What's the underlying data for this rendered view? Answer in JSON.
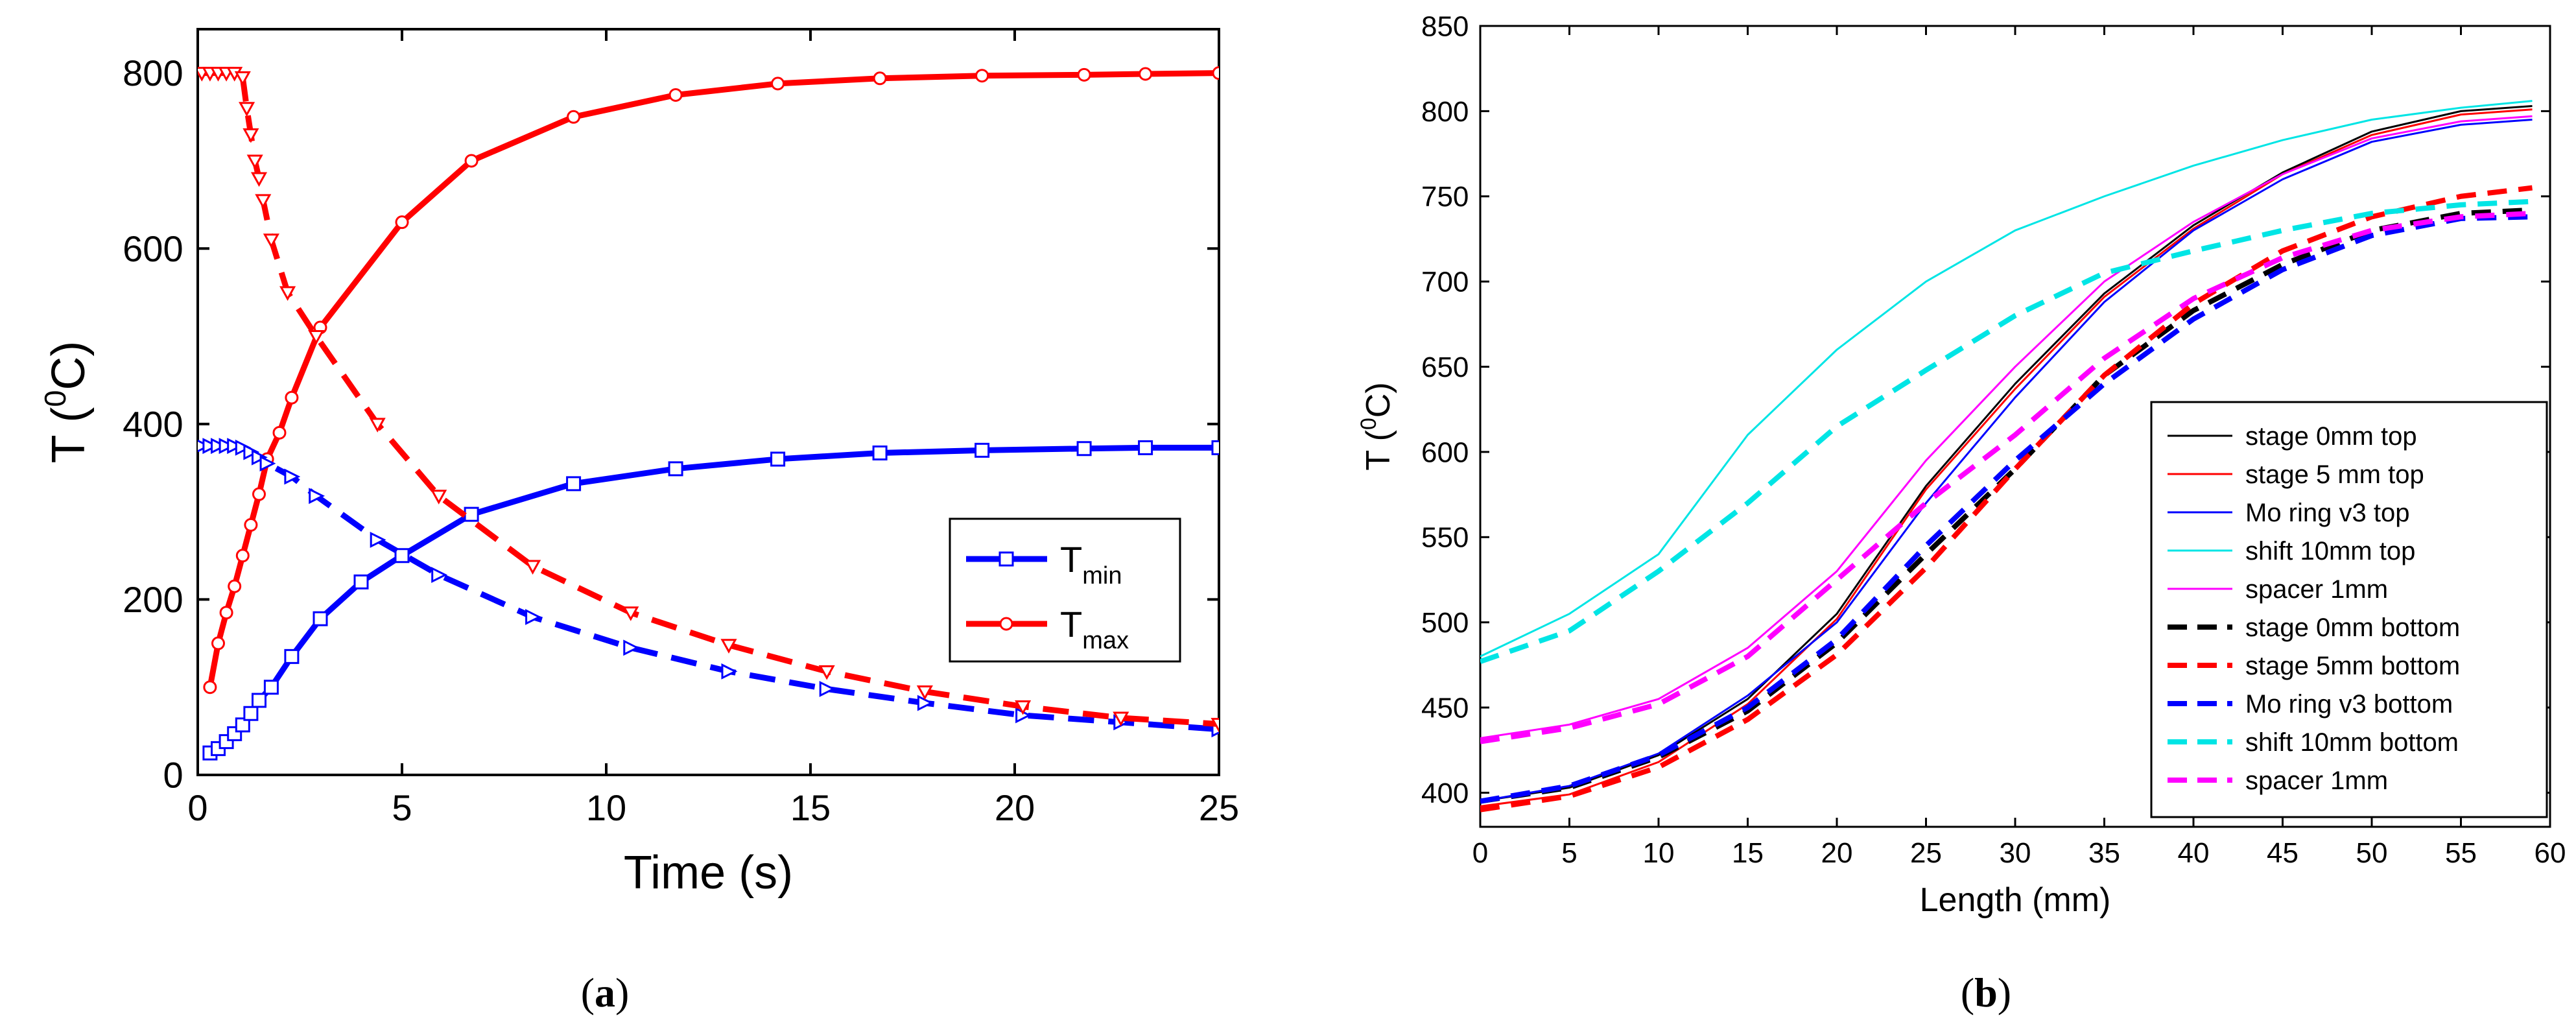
{
  "panel_labels": {
    "a": "a",
    "b": "b"
  },
  "chart_data": [
    {
      "type": "line",
      "panel": "a",
      "xlabel": "Time (s)",
      "ylabel": {
        "base": "T (",
        "sup": "0",
        "rest": "C)"
      },
      "xlim": [
        0,
        25
      ],
      "ylim": [
        0,
        850
      ],
      "xticks": [
        0,
        5,
        10,
        15,
        20,
        25
      ],
      "yticks": [
        0,
        200,
        400,
        600,
        800
      ],
      "grid": false,
      "legend": {
        "placement": "center-right",
        "entries": [
          {
            "base": "T",
            "sub": "min",
            "color": "#0000ff",
            "marker": "square"
          },
          {
            "base": "T",
            "sub": "max",
            "color": "#ff0000",
            "marker": "diamond"
          }
        ]
      },
      "series": [
        {
          "color": "#0000ff",
          "style": "solid",
          "marker": "square",
          "width": 9,
          "x": [
            0.3,
            0.5,
            0.7,
            0.9,
            1.1,
            1.3,
            1.5,
            1.8,
            2.3,
            3.0,
            4.0,
            5.0,
            6.7,
            9.2,
            11.7,
            14.2,
            16.7,
            19.2,
            21.7,
            23.2,
            25.0
          ],
          "y": [
            25,
            30,
            38,
            47,
            57,
            70,
            85,
            100,
            135,
            178,
            220,
            250,
            297,
            332,
            349,
            360,
            367,
            370,
            372,
            373,
            373
          ]
        },
        {
          "color": "#ff0000",
          "style": "solid",
          "marker": "diamond",
          "width": 9,
          "x": [
            0.3,
            0.5,
            0.7,
            0.9,
            1.1,
            1.3,
            1.5,
            1.7,
            2.0,
            2.3,
            3.0,
            5.0,
            6.7,
            9.2,
            11.7,
            14.2,
            16.7,
            19.2,
            21.7,
            23.2,
            25.0
          ],
          "y": [
            100,
            150,
            185,
            215,
            250,
            285,
            320,
            360,
            390,
            430,
            510,
            630,
            700,
            750,
            775,
            788,
            794,
            797,
            798,
            799,
            800
          ]
        },
        {
          "color": "#0000ff",
          "style": "dashed",
          "marker": "triangle-right",
          "width": 9,
          "x": [
            0.1,
            0.3,
            0.5,
            0.7,
            0.9,
            1.1,
            1.3,
            1.5,
            1.7,
            2.3,
            2.9,
            4.4,
            5.9,
            8.2,
            10.6,
            13.0,
            15.4,
            17.8,
            20.2,
            22.6,
            25.0
          ],
          "y": [
            375,
            375,
            375,
            375,
            375,
            373,
            368,
            362,
            355,
            340,
            318,
            268,
            228,
            180,
            145,
            118,
            98,
            82,
            68,
            60,
            52
          ]
        },
        {
          "color": "#ff0000",
          "style": "dashed",
          "marker": "triangle-down",
          "width": 9,
          "x": [
            0.1,
            0.3,
            0.5,
            0.7,
            0.9,
            1.1,
            1.2,
            1.3,
            1.4,
            1.5,
            1.6,
            1.8,
            2.2,
            2.9,
            4.4,
            5.9,
            8.2,
            10.6,
            13.0,
            15.4,
            17.8,
            20.2,
            22.6,
            25.0
          ],
          "y": [
            800,
            800,
            800,
            800,
            800,
            795,
            760,
            730,
            700,
            680,
            655,
            610,
            550,
            500,
            400,
            318,
            238,
            185,
            148,
            118,
            95,
            78,
            65,
            58
          ]
        }
      ]
    },
    {
      "type": "line",
      "panel": "b",
      "xlabel": "Length (mm)",
      "ylabel": {
        "base": "T (",
        "sup": "0",
        "rest": "C)"
      },
      "xlim": [
        0,
        60
      ],
      "ylim": [
        380,
        850
      ],
      "xticks": [
        0,
        5,
        10,
        15,
        20,
        25,
        30,
        35,
        40,
        45,
        50,
        55,
        60
      ],
      "yticks": [
        400,
        450,
        500,
        550,
        600,
        650,
        700,
        750,
        800,
        850
      ],
      "grid": false,
      "legend": {
        "placement": "bottom-right",
        "entries": [
          {
            "label": "stage 0mm top",
            "color": "#000000",
            "style": "solid"
          },
          {
            "label": "stage 5 mm top",
            "color": "#ff0000",
            "style": "solid"
          },
          {
            "label": "Mo ring v3 top",
            "color": "#0000ff",
            "style": "solid"
          },
          {
            "label": "shift 10mm top",
            "color": "#00e5e5",
            "style": "solid"
          },
          {
            "label": "spacer 1mm",
            "color": "#ff00ff",
            "style": "solid"
          },
          {
            "label": "stage 0mm bottom",
            "color": "#000000",
            "style": "dashed"
          },
          {
            "label": "stage 5mm bottom",
            "color": "#ff0000",
            "style": "dashed"
          },
          {
            "label": "Mo ring v3 bottom",
            "color": "#0000ff",
            "style": "dashed"
          },
          {
            "label": "shift 10mm bottom",
            "color": "#00e5e5",
            "style": "dashed"
          },
          {
            "label": "spacer 1mm",
            "color": "#ff00ff",
            "style": "dashed"
          }
        ]
      },
      "x": [
        0,
        5,
        10,
        15,
        20,
        25,
        30,
        35,
        40,
        45,
        50,
        55,
        59
      ],
      "series": [
        {
          "color": "#000000",
          "style": "solid",
          "width": 3,
          "y": [
            395,
            403,
            422,
            455,
            505,
            580,
            640,
            693,
            733,
            764,
            788,
            800,
            803
          ]
        },
        {
          "color": "#ff0000",
          "style": "solid",
          "width": 3,
          "y": [
            392,
            399,
            418,
            452,
            502,
            578,
            637,
            691,
            731,
            763,
            786,
            798,
            801
          ]
        },
        {
          "color": "#0000ff",
          "style": "solid",
          "width": 3,
          "y": [
            395,
            404,
            423,
            457,
            500,
            570,
            632,
            688,
            730,
            760,
            782,
            792,
            795
          ]
        },
        {
          "color": "#00e5e5",
          "style": "solid",
          "width": 3,
          "y": [
            480,
            505,
            540,
            610,
            660,
            700,
            730,
            750,
            768,
            783,
            795,
            802,
            806
          ]
        },
        {
          "color": "#ff00ff",
          "style": "solid",
          "width": 3,
          "y": [
            432,
            440,
            455,
            485,
            530,
            595,
            650,
            700,
            735,
            763,
            784,
            794,
            797
          ]
        },
        {
          "color": "#000000",
          "style": "dashed",
          "width": 8,
          "y": [
            395,
            403,
            421,
            448,
            488,
            540,
            590,
            645,
            683,
            710,
            730,
            740,
            742
          ]
        },
        {
          "color": "#ff0000",
          "style": "dashed",
          "width": 8,
          "y": [
            390,
            398,
            415,
            443,
            481,
            532,
            590,
            645,
            687,
            718,
            738,
            750,
            755
          ]
        },
        {
          "color": "#0000ff",
          "style": "dashed",
          "width": 8,
          "y": [
            395,
            404,
            422,
            450,
            490,
            545,
            595,
            640,
            678,
            707,
            727,
            737,
            738
          ]
        },
        {
          "color": "#00e5e5",
          "style": "dashed",
          "width": 8,
          "y": [
            477,
            495,
            530,
            570,
            615,
            648,
            680,
            705,
            718,
            730,
            740,
            745,
            747
          ]
        },
        {
          "color": "#ff00ff",
          "style": "dashed",
          "width": 8,
          "y": [
            430,
            438,
            452,
            480,
            525,
            570,
            610,
            655,
            690,
            714,
            730,
            738,
            740
          ]
        }
      ]
    }
  ]
}
